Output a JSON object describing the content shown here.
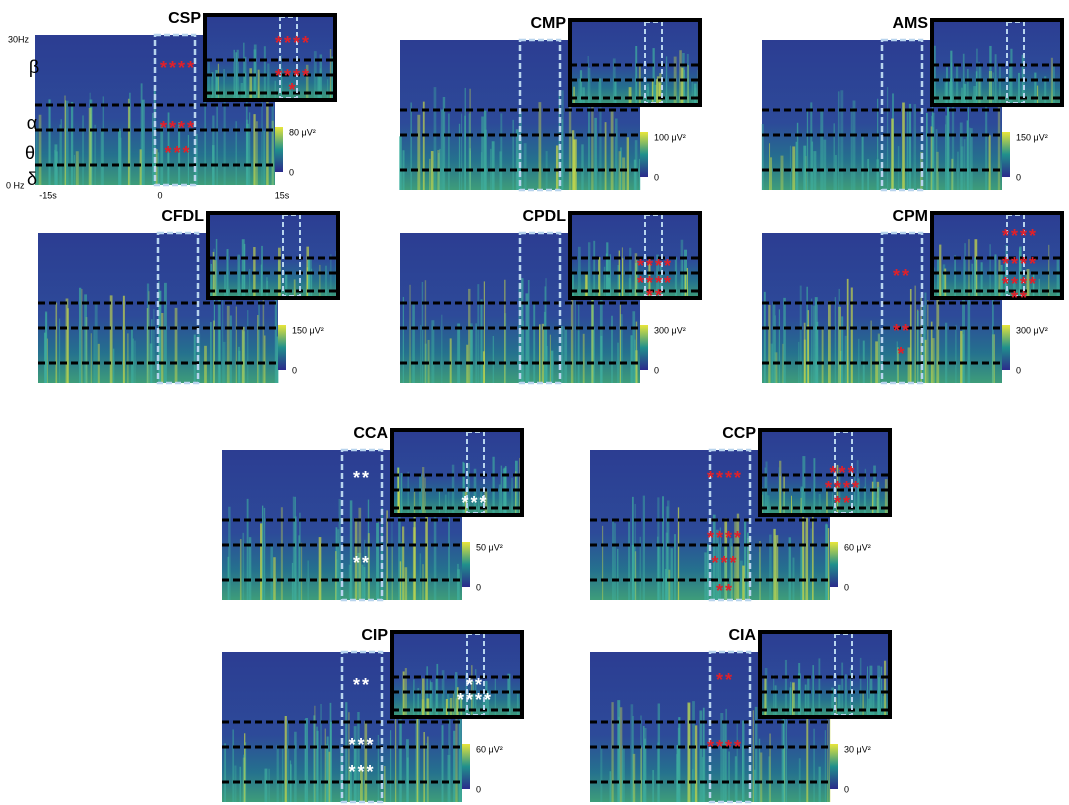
{
  "axis": {
    "top": "30Hz",
    "bottom": "0 Hz",
    "bands": [
      "β",
      "α",
      "θ",
      "δ"
    ],
    "times": [
      "-15s",
      "0",
      "15s"
    ]
  },
  "panels": [
    {
      "title": "CSP",
      "scale": "80 μV²",
      "zero": "0",
      "star_color": "#e0202a",
      "stars": [
        "****",
        "****",
        "***",
        "****",
        "****",
        "*"
      ]
    },
    {
      "title": "CMP",
      "scale": "100 μV²",
      "zero": "0",
      "star_color": "#e0202a",
      "stars": []
    },
    {
      "title": "AMS",
      "scale": "150 μV²",
      "zero": "0",
      "star_color": "#e0202a",
      "stars": []
    },
    {
      "title": "CFDL",
      "scale": "150 μV²",
      "zero": "0",
      "star_color": "#e0202a",
      "stars": []
    },
    {
      "title": "CPDL",
      "scale": "300 μV²",
      "zero": "0",
      "star_color": "#e0202a",
      "stars": [
        "****",
        "****",
        "**"
      ]
    },
    {
      "title": "CPM",
      "scale": "300 μV²",
      "zero": "0",
      "star_color": "#e0202a",
      "stars": [
        "**",
        "**",
        "*",
        "****",
        "****",
        "****",
        "**"
      ]
    },
    {
      "title": "CCA",
      "scale": "50 μV²",
      "zero": "0",
      "star_color": "#ffffff",
      "stars": [
        "**",
        "**",
        "***"
      ]
    },
    {
      "title": "CCP",
      "scale": "60 μV²",
      "zero": "0",
      "star_color": "#e0202a",
      "stars": [
        "****",
        "****",
        "***",
        "**",
        "***",
        "****",
        "**"
      ]
    },
    {
      "title": "CIP",
      "scale": "60 μV²",
      "zero": "0",
      "star_color": "#ffffff",
      "stars": [
        "**",
        "***",
        "***",
        "**",
        "****"
      ]
    },
    {
      "title": "CIA",
      "scale": "30 μV²",
      "zero": "0",
      "star_color": "#e0202a",
      "stars": [
        "**",
        "****"
      ]
    }
  ]
}
